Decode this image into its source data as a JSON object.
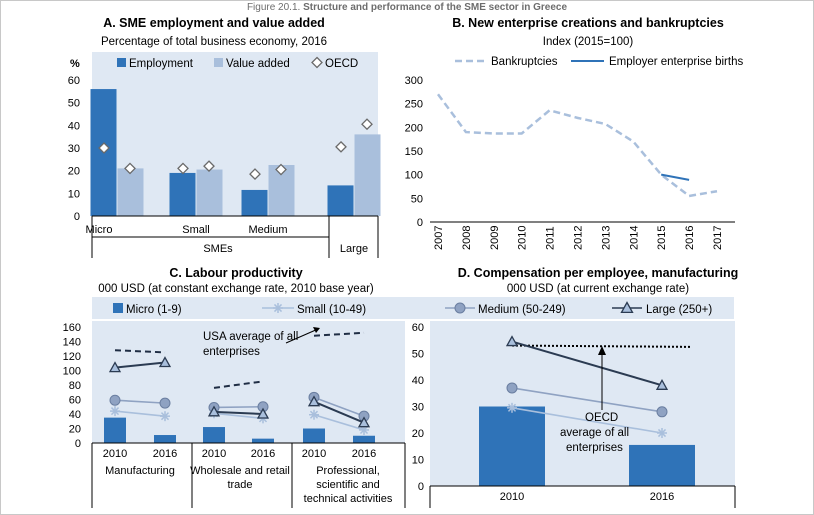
{
  "figure": {
    "caption_prefix": "Figure 20.1. ",
    "caption_title": "Structure and performance of the SME sector in Greece"
  },
  "colors": {
    "employment": "#2f73b8",
    "value_added": "#a9bfdc",
    "panel_bg": "#dfe8f3",
    "legend_bg": "#dfe8f3",
    "bankruptcies": "#a9bfdc",
    "births": "#2f73b8",
    "micro": "#2f73b8",
    "small": "#a9bfdc",
    "medium": "#8fa2c2",
    "large": "#2b3b52",
    "usa": "#1f2d44",
    "oecd": "#000000"
  },
  "chart_data": [
    {
      "id": "A",
      "type": "bar",
      "title": "A. SME employment and value added",
      "subtitle": "Percentage of total business economy, 2016",
      "ylabel": "%",
      "ylim": [
        0,
        60
      ],
      "yticks": [
        0,
        10,
        20,
        30,
        40,
        50,
        60
      ],
      "categories": [
        "Micro",
        "Small",
        "Medium",
        "Large"
      ],
      "group_label": "SMEs",
      "series": [
        {
          "name": "Employment",
          "values": [
            56,
            19,
            11.5,
            13.5
          ]
        },
        {
          "name": "Value added",
          "values": [
            21,
            20.5,
            22.5,
            36
          ]
        },
        {
          "name": "OECD",
          "values": [
            30,
            21,
            18.5,
            30.5
          ],
          "marker": "diamond"
        },
        {
          "name": "OECD_va",
          "values": [
            21,
            22,
            20.5,
            40.5
          ],
          "marker": "diamond"
        }
      ],
      "legend": [
        "Employment",
        "Value added",
        "OECD"
      ]
    },
    {
      "id": "B",
      "type": "line",
      "title": "B. New enterprise creations and bankruptcies",
      "subtitle": "Index (2015=100)",
      "ylim": [
        0,
        300
      ],
      "yticks": [
        0,
        50,
        100,
        150,
        200,
        250,
        300
      ],
      "x": [
        "2007",
        "2008",
        "2009",
        "2010",
        "2011",
        "2012",
        "2013",
        "2014",
        "2015",
        "2016",
        "2017"
      ],
      "series": [
        {
          "name": "Bankruptcies",
          "values": [
            270,
            190,
            187,
            187,
            236,
            220,
            207,
            170,
            100,
            55,
            65
          ]
        },
        {
          "name": "Employer enterprise births",
          "values": [
            null,
            null,
            null,
            null,
            null,
            null,
            null,
            null,
            100,
            89,
            null
          ]
        }
      ]
    },
    {
      "id": "C",
      "type": "bar",
      "title": "C. Labour productivity",
      "subtitle": "000 USD (at constant exchange rate, 2010 base year)",
      "ylim": [
        0,
        160
      ],
      "yticks": [
        0,
        20,
        40,
        60,
        80,
        100,
        120,
        140,
        160
      ],
      "legend": [
        "Micro (1-9)",
        "Small (10-49)",
        "Medium (50-249)",
        "Large (250+)"
      ],
      "annotation": "USA average of all enterprises",
      "groups": [
        {
          "name": "Manufacturing",
          "x": [
            "2010",
            "2016"
          ],
          "micro": [
            35,
            11
          ],
          "small": [
            44,
            37
          ],
          "medium": [
            59,
            55
          ],
          "large": [
            104,
            111
          ],
          "usa": [
            128,
            125
          ]
        },
        {
          "name": "Wholesale and retail trade",
          "x": [
            "2010",
            "2016"
          ],
          "micro": [
            22,
            6
          ],
          "small": [
            41,
            34
          ],
          "medium": [
            49,
            50
          ],
          "large": [
            43,
            40
          ],
          "usa": [
            76,
            85
          ]
        },
        {
          "name": "Professional, scientific and technical activities",
          "x": [
            "2010",
            "2016"
          ],
          "micro": [
            20,
            10
          ],
          "small": [
            39,
            18
          ],
          "medium": [
            63,
            37
          ],
          "large": [
            57,
            28
          ],
          "usa": [
            148,
            152
          ]
        }
      ]
    },
    {
      "id": "D",
      "type": "bar",
      "title": "D. Compensation per employee, manufacturing",
      "subtitle": "000 USD (at current exchange rate)",
      "ylim": [
        0,
        60
      ],
      "yticks": [
        0,
        10,
        20,
        30,
        40,
        50,
        60
      ],
      "x": [
        "2010",
        "2016"
      ],
      "micro": [
        30,
        15.5
      ],
      "small": [
        29.5,
        20
      ],
      "medium": [
        37,
        28
      ],
      "large": [
        54.5,
        38
      ],
      "oecd": [
        53,
        52.5
      ],
      "annotation": "OECD average of all enterprises"
    }
  ]
}
